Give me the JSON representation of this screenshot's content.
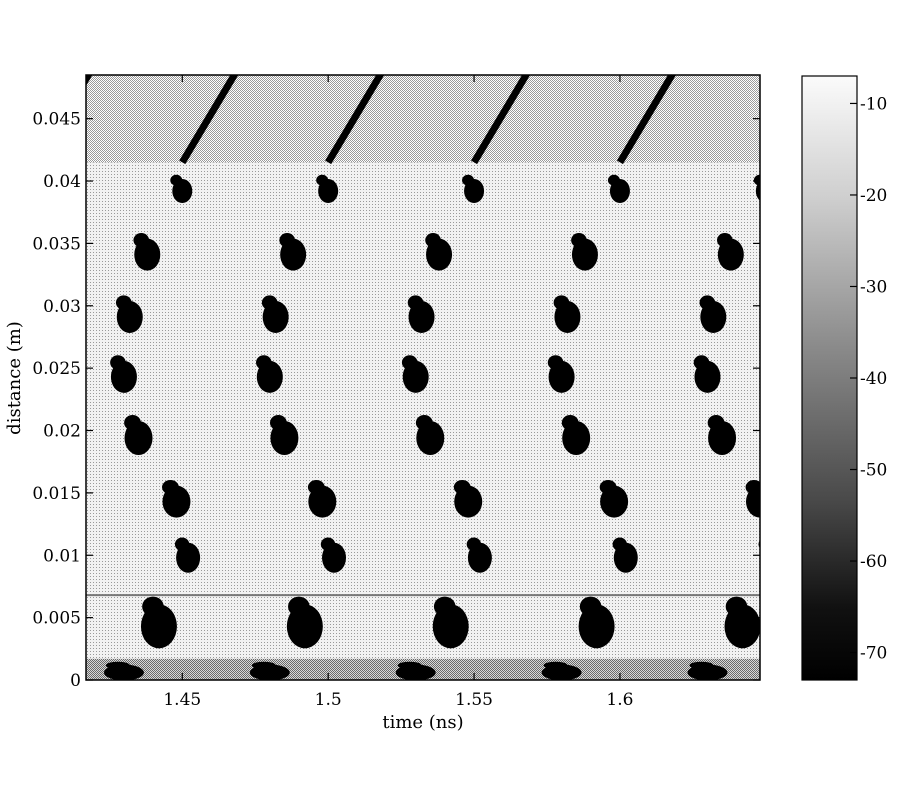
{
  "chart_data": {
    "type": "heatmap",
    "title": "",
    "xlabel": "time (ns)",
    "ylabel": "distance (m)",
    "xlim": [
      1.417,
      1.648
    ],
    "ylim": [
      0,
      0.0485
    ],
    "xticks": [
      1.45,
      1.5,
      1.55,
      1.6
    ],
    "xtick_labels": [
      "1.45",
      "1.5",
      "1.55",
      "1.6"
    ],
    "yticks": [
      0,
      0.005,
      0.01,
      0.015,
      0.02,
      0.025,
      0.03,
      0.035,
      0.04,
      0.045
    ],
    "ytick_labels": [
      "0",
      "0.005",
      "0.01",
      "0.015",
      "0.02",
      "0.025",
      "0.03",
      "0.035",
      "0.04",
      "0.045"
    ],
    "colorbar": {
      "range": [
        -73,
        -7
      ],
      "ticks": [
        -10,
        -20,
        -30,
        -40,
        -50,
        -60,
        -70
      ],
      "tick_labels": [
        "-10",
        "-20",
        "-30",
        "-40",
        "-50",
        "-60",
        "-70"
      ]
    },
    "period_ns": 0.05,
    "region_boundaries_m": [
      0.0068,
      0.0415
    ],
    "colors": {
      "high": "#e6e6e6",
      "mid": "#a0a0a0",
      "low": "#000000"
    }
  }
}
